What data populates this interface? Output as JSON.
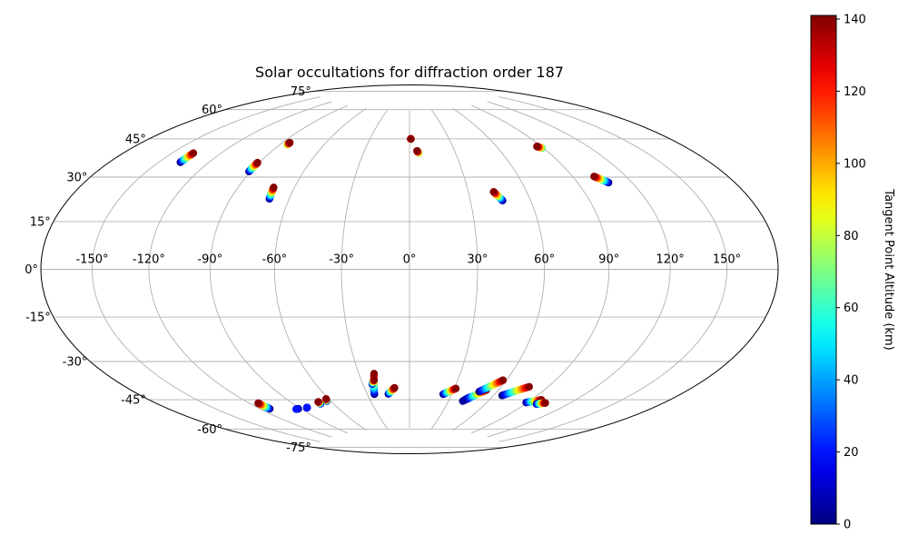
{
  "chart_data": {
    "type": "scatter",
    "projection": "hammer",
    "title": "Solar occultations for diffraction order 187",
    "x_tick_labels": [
      "-150°",
      "-120°",
      "-90°",
      "-60°",
      "-30°",
      "0°",
      "30°",
      "60°",
      "90°",
      "120°",
      "150°"
    ],
    "y_tick_labels": [
      "-75°",
      "-60°",
      "-45°",
      "-30°",
      "-15°",
      "0°",
      "15°",
      "30°",
      "45°",
      "60°",
      "75°"
    ],
    "grid": true,
    "colorbar": {
      "label": "Tangent Point Altitude (km)",
      "colormap": "jet",
      "range": [
        0,
        141
      ],
      "tick_labels": [
        "0",
        "20",
        "40",
        "60",
        "80",
        "100",
        "120",
        "140"
      ]
    },
    "occultations": [
      {
        "lon": [
          -137,
          -137
        ],
        "lat": [
          41,
          45
        ],
        "alt": [
          0,
          140
        ]
      },
      {
        "lon": [
          -91,
          -91
        ],
        "lat": [
          41,
          45
        ],
        "alt": [
          0,
          140
        ]
      },
      {
        "lon": [
          -85,
          -85
        ],
        "lat": [
          54,
          55
        ],
        "alt": [
          70,
          140
        ]
      },
      {
        "lon": [
          -70,
          -71
        ],
        "lat": [
          30,
          35
        ],
        "alt": [
          0,
          140
        ]
      },
      {
        "lon": [
          1,
          1
        ],
        "lat": [
          60,
          60
        ],
        "alt": [
          70,
          140
        ]
      },
      {
        "lon": [
          6,
          5
        ],
        "lat": [
          53,
          54
        ],
        "alt": [
          70,
          140
        ]
      },
      {
        "lon": [
          46,
          43
        ],
        "lat": [
          30,
          34
        ],
        "alt": [
          0,
          140
        ]
      },
      {
        "lon": [
          89,
          87
        ],
        "lat": [
          52,
          53
        ],
        "alt": [
          60,
          140
        ]
      },
      {
        "lon": [
          107,
          102
        ],
        "lat": [
          35,
          38
        ],
        "alt": [
          0,
          140
        ]
      },
      {
        "lon": [
          -113,
          -114
        ],
        "lat": [
          -59,
          -56
        ],
        "alt": [
          0,
          140
        ]
      },
      {
        "lon": [
          -92,
          -94
        ],
        "lat": [
          -61,
          -61
        ],
        "alt": [
          0,
          20
        ]
      },
      {
        "lon": [
          -84,
          -84
        ],
        "lat": [
          -61,
          -61
        ],
        "alt": [
          0,
          20
        ]
      },
      {
        "lon": [
          -70,
          -70
        ],
        "lat": [
          -60,
          -59
        ],
        "alt": [
          0,
          140
        ]
      },
      {
        "lon": [
          -63,
          -62
        ],
        "lat": [
          -59,
          -58
        ],
        "alt": [
          0,
          140
        ]
      },
      {
        "lon": [
          -25,
          -21
        ],
        "lat": [
          -57,
          -47
        ],
        "alt": [
          0,
          140
        ]
      },
      {
        "lon": [
          -24,
          -22
        ],
        "lat": [
          -52,
          -50
        ],
        "alt": [
          0,
          140
        ]
      },
      {
        "lon": [
          -15,
          -10
        ],
        "lat": [
          -57,
          -54
        ],
        "alt": [
          0,
          140
        ]
      },
      {
        "lon": [
          24,
          31
        ],
        "lat": [
          -57,
          -54
        ],
        "alt": [
          0,
          140
        ]
      },
      {
        "lon": [
          41,
          44
        ],
        "lat": [
          -60,
          -58
        ],
        "alt": [
          0,
          20
        ]
      },
      {
        "lon": [
          43,
          52
        ],
        "lat": [
          -59,
          -54
        ],
        "alt": [
          0,
          140
        ]
      },
      {
        "lon": [
          48,
          58
        ],
        "lat": [
          -55,
          -49
        ],
        "alt": [
          0,
          140
        ]
      },
      {
        "lon": [
          66,
          78
        ],
        "lat": [
          -56,
          -51
        ],
        "alt": [
          0,
          140
        ]
      },
      {
        "lon": [
          89,
          97
        ],
        "lat": [
          -58,
          -56
        ],
        "alt": [
          0,
          140
        ]
      },
      {
        "lon": [
          98,
          103
        ],
        "lat": [
          -58,
          -57
        ],
        "alt": [
          0,
          140
        ]
      }
    ]
  }
}
